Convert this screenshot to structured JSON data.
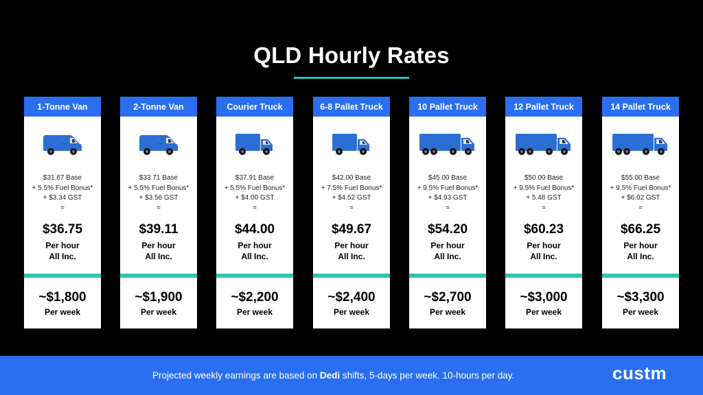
{
  "title": "QLD Hourly Rates",
  "colors": {
    "accent": "#2ec4b6",
    "brand_blue": "#2a6ff2",
    "van_blue": "#2c6fd4"
  },
  "cards": [
    {
      "name": "1-Tonne Van",
      "icon": "van-icon",
      "base": "$31.67 Base",
      "fuel": "+ 5.5% Fuel Bonus*",
      "gst": "+ $3.34 GST",
      "equals": "=",
      "hourly": "$36.75",
      "per_hour": "Per hour",
      "all_inc": "All Inc.",
      "weekly": "~$1,800",
      "per_week": "Per week"
    },
    {
      "name": "2-Tonne Van",
      "icon": "van-icon",
      "base": "$33.71 Base",
      "fuel": "+ 5.5% Fuel Bonus*",
      "gst": "+ $3.56 GST",
      "equals": "=",
      "hourly": "$39.11",
      "per_hour": "Per hour",
      "all_inc": "All Inc.",
      "weekly": "~$1,900",
      "per_week": "Per week"
    },
    {
      "name": "Courier Truck",
      "icon": "truck-icon",
      "base": "$37.91 Base",
      "fuel": "+ 5.5% Fuel Bonus*",
      "gst": "+ $4.00 GST",
      "equals": "=",
      "hourly": "$44.00",
      "per_hour": "Per hour",
      "all_inc": "All Inc.",
      "weekly": "~$2,200",
      "per_week": "Per week"
    },
    {
      "name": "6-8 Pallet Truck",
      "icon": "truck-icon",
      "base": "$42.00 Base",
      "fuel": "+ 7.5% Fuel Bonus*",
      "gst": "+ $4.52 GST",
      "equals": "=",
      "hourly": "$49.67",
      "per_hour": "Per hour",
      "all_inc": "All Inc.",
      "weekly": "~$2,400",
      "per_week": "Per week"
    },
    {
      "name": "10 Pallet Truck",
      "icon": "large-truck-icon",
      "base": "$45.00 Base",
      "fuel": "+ 9.5% Fuel Bonus*",
      "gst": "+ $4.93 GST",
      "equals": "=",
      "hourly": "$54.20",
      "per_hour": "Per hour",
      "all_inc": "All Inc.",
      "weekly": "~$2,700",
      "per_week": "Per week"
    },
    {
      "name": "12 Pallet Truck",
      "icon": "large-truck-icon",
      "base": "$50.00 Base",
      "fuel": "+ 9.5% Fuel Bonus*",
      "gst": "+ 5.48 GST",
      "equals": "=",
      "hourly": "$60.23",
      "per_hour": "Per hour",
      "all_inc": "All Inc.",
      "weekly": "~$3,000",
      "per_week": "Per week"
    },
    {
      "name": "14 Pallet Truck",
      "icon": "large-truck-icon",
      "base": "$55.00 Base",
      "fuel": "+ 9.5% Fuel Bonus*",
      "gst": "+ $6.02 GST",
      "equals": "=",
      "hourly": "$66.25",
      "per_hour": "Per hour",
      "all_inc": "All Inc.",
      "weekly": "~$3,300",
      "per_week": "Per week"
    }
  ],
  "footer": {
    "text_before": "Projected weekly earnings are based on ",
    "text_bold": "Dedi",
    "text_after": " shifts, 5-days per week. 10-hours per day.",
    "logo": "custm"
  }
}
